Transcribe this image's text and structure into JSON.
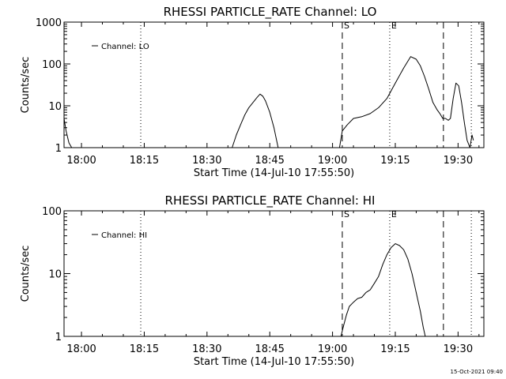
{
  "chart_data": [
    {
      "type": "line",
      "title": "RHESSI PARTICLE_RATE Channel: LO",
      "xlabel": "Start Time (14-Jul-10 17:55:50)",
      "ylabel": "Counts/sec",
      "y_scale": "log",
      "ylim": [
        1,
        1000
      ],
      "xlim": [
        "17:55:50",
        "19:36:10"
      ],
      "x_ticks": [
        "18:00",
        "18:15",
        "18:30",
        "18:45",
        "19:00",
        "19:15",
        "19:30"
      ],
      "y_ticks": [
        "1",
        "10",
        "100",
        "1000"
      ],
      "legend": {
        "position": "top-left",
        "entries": [
          "Channel: LO"
        ]
      },
      "markers": [
        {
          "time": "18:14:10",
          "style": "dotted",
          "label": ""
        },
        {
          "time": "19:02:20",
          "style": "dashed",
          "label": "S"
        },
        {
          "time": "19:13:40",
          "style": "dotted",
          "label": "E"
        },
        {
          "time": "19:26:30",
          "style": "dashed",
          "label": ""
        },
        {
          "time": "19:33:10",
          "style": "dotted",
          "label": ""
        }
      ],
      "series": [
        {
          "name": "Channel: LO",
          "segments": [
            {
              "x": [
                "17:55:50",
                "17:56:20",
                "17:57:00",
                "17:57:40"
              ],
              "y": [
                5,
                2.5,
                1.3,
                1
              ]
            },
            {
              "x": [
                "18:36:00",
                "18:37:00",
                "18:38:00",
                "18:39:00",
                "18:40:00",
                "18:41:00",
                "18:42:00",
                "18:42:40",
                "18:43:20",
                "18:44:00",
                "18:45:00",
                "18:46:00",
                "18:47:00"
              ],
              "y": [
                1,
                2,
                3.5,
                6,
                9,
                12,
                16,
                19,
                17,
                13,
                7,
                3,
                1
              ]
            },
            {
              "x": [
                "19:01:40",
                "19:02:20",
                "19:03:30",
                "19:05:00",
                "19:07:00",
                "19:09:00",
                "19:11:00",
                "19:13:00",
                "19:15:00",
                "19:17:00",
                "19:18:40",
                "19:20:00",
                "19:21:00",
                "19:22:00",
                "19:23:00",
                "19:24:00",
                "19:25:00",
                "19:25:40",
                "19:26:20",
                "19:27:00",
                "19:27:40",
                "19:28:10",
                "19:28:50",
                "19:29:30",
                "19:30:10",
                "19:30:50",
                "19:31:30",
                "19:32:10",
                "19:32:50",
                "19:33:20",
                "19:33:40"
              ],
              "y": [
                1,
                2.5,
                3.5,
                5,
                5.5,
                6.5,
                9,
                15,
                35,
                80,
                150,
                130,
                90,
                50,
                25,
                12,
                8,
                6.5,
                5,
                5,
                4.5,
                5,
                15,
                35,
                30,
                12,
                4,
                1.5,
                1,
                2,
                1.5
              ]
            }
          ]
        }
      ]
    },
    {
      "type": "line",
      "title": "RHESSI PARTICLE_RATE Channel: HI",
      "xlabel": "Start Time (14-Jul-10 17:55:50)",
      "ylabel": "Counts/sec",
      "y_scale": "log",
      "ylim": [
        1,
        100
      ],
      "xlim": [
        "17:55:50",
        "19:36:10"
      ],
      "x_ticks": [
        "18:00",
        "18:15",
        "18:30",
        "18:45",
        "19:00",
        "19:15",
        "19:30"
      ],
      "y_ticks": [
        "1",
        "10",
        "100"
      ],
      "legend": {
        "position": "top-left",
        "entries": [
          "Channel: HI"
        ]
      },
      "markers": [
        {
          "time": "18:14:10",
          "style": "dotted",
          "label": ""
        },
        {
          "time": "19:02:20",
          "style": "dashed",
          "label": "S"
        },
        {
          "time": "19:13:40",
          "style": "dotted",
          "label": "E"
        },
        {
          "time": "19:26:30",
          "style": "dashed",
          "label": ""
        },
        {
          "time": "19:33:10",
          "style": "dotted",
          "label": ""
        }
      ],
      "series": [
        {
          "name": "Channel: HI",
          "segments": [
            {
              "x": [
                "19:02:00",
                "19:02:40",
                "19:03:20",
                "19:04:00",
                "19:05:00",
                "19:06:00",
                "19:07:00",
                "19:08:00",
                "19:09:00",
                "19:10:00",
                "19:11:00",
                "19:12:00",
                "19:13:00",
                "19:14:00",
                "19:15:00",
                "19:16:00",
                "19:17:00",
                "19:18:00",
                "19:19:00",
                "19:20:00",
                "19:21:00",
                "19:21:40",
                "19:22:10"
              ],
              "y": [
                1,
                1.5,
                2.2,
                3,
                3.5,
                4,
                4.2,
                5,
                5.5,
                7,
                9,
                14,
                20,
                26,
                30,
                28,
                24,
                17,
                10,
                5,
                2.5,
                1.4,
                1
              ]
            }
          ]
        }
      ]
    }
  ],
  "footer": {
    "timestamp": "15-Oct-2021 09:40"
  }
}
